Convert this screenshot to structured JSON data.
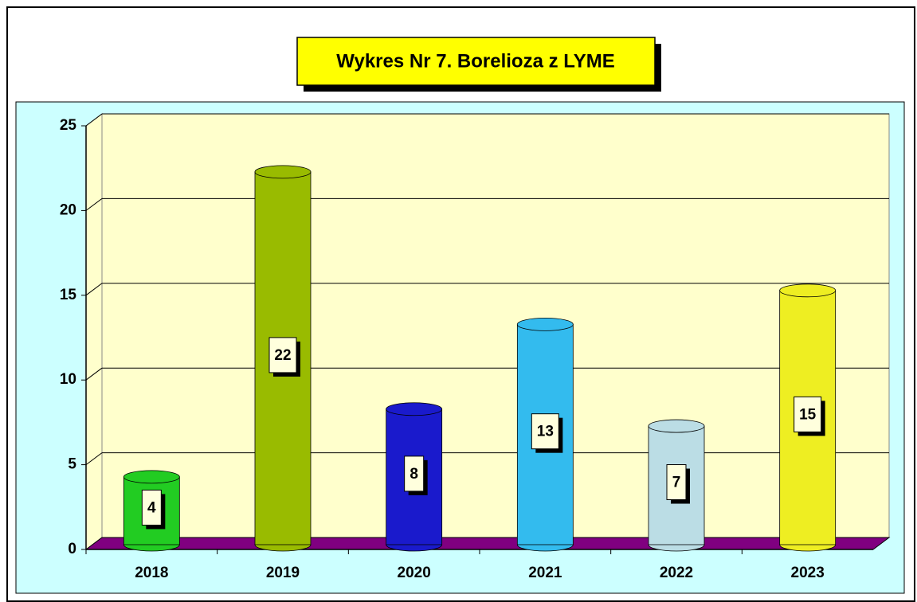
{
  "chart_data": {
    "type": "bar",
    "title": "Wykres Nr 7. Borelioza z LYME",
    "categories": [
      "2018",
      "2019",
      "2020",
      "2021",
      "2022",
      "2023"
    ],
    "values": [
      4,
      22,
      8,
      13,
      7,
      15
    ],
    "colors": [
      "#22cc22",
      "#99bb00",
      "#1a1acc",
      "#33bbee",
      "#bbdde5",
      "#eeee22"
    ],
    "ylim": [
      0,
      25
    ],
    "yticks": [
      0,
      5,
      10,
      15,
      20,
      25
    ],
    "grid": true
  }
}
